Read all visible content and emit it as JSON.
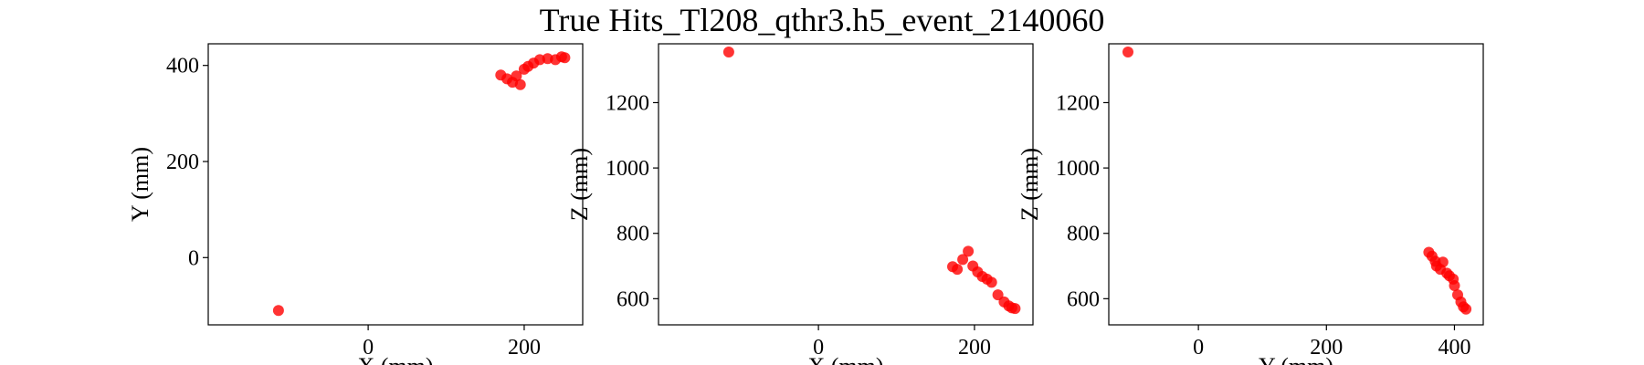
{
  "chart_data": [
    {
      "type": "scatter",
      "panel": "xy",
      "title": "True Hits_Tl208_qthr3.h5_event_2140060",
      "xlabel": "X (mm)",
      "ylabel": "Y (mm)",
      "xlim": [
        -205,
        275
      ],
      "ylim": [
        -140,
        445
      ],
      "xticks": [
        0,
        200
      ],
      "yticks": [
        0,
        200,
        400
      ],
      "x": [
        -115,
        170,
        178,
        185,
        190,
        195,
        200,
        205,
        212,
        220,
        230,
        240,
        248,
        252
      ],
      "y": [
        -110,
        380,
        372,
        365,
        378,
        360,
        392,
        398,
        405,
        412,
        414,
        412,
        418,
        416
      ],
      "color": "#ff0000"
    },
    {
      "type": "scatter",
      "panel": "xz",
      "xlabel": "X (mm)",
      "ylabel": "Z (mm)",
      "xlim": [
        -205,
        275
      ],
      "ylim": [
        520,
        1380
      ],
      "xticks": [
        0,
        200
      ],
      "yticks": [
        600,
        800,
        1000,
        1200
      ],
      "x": [
        -115,
        172,
        178,
        185,
        192,
        198,
        204,
        210,
        216,
        222,
        230,
        238,
        244,
        248,
        252
      ],
      "y": [
        1355,
        698,
        690,
        720,
        745,
        700,
        682,
        668,
        660,
        650,
        612,
        590,
        578,
        572,
        570
      ],
      "color": "#ff0000"
    },
    {
      "type": "scatter",
      "panel": "yz",
      "xlabel": "Y (mm)",
      "ylabel": "Z (mm)",
      "xlim": [
        -140,
        445
      ],
      "ylim": [
        520,
        1380
      ],
      "xticks": [
        0,
        200,
        400
      ],
      "yticks": [
        600,
        800,
        1000,
        1200
      ],
      "x": [
        -110,
        360,
        365,
        370,
        372,
        378,
        382,
        388,
        392,
        398,
        400,
        405,
        410,
        414,
        418
      ],
      "y": [
        1355,
        742,
        730,
        715,
        700,
        690,
        712,
        678,
        670,
        660,
        640,
        612,
        590,
        575,
        568
      ],
      "color": "#ff0000"
    }
  ]
}
